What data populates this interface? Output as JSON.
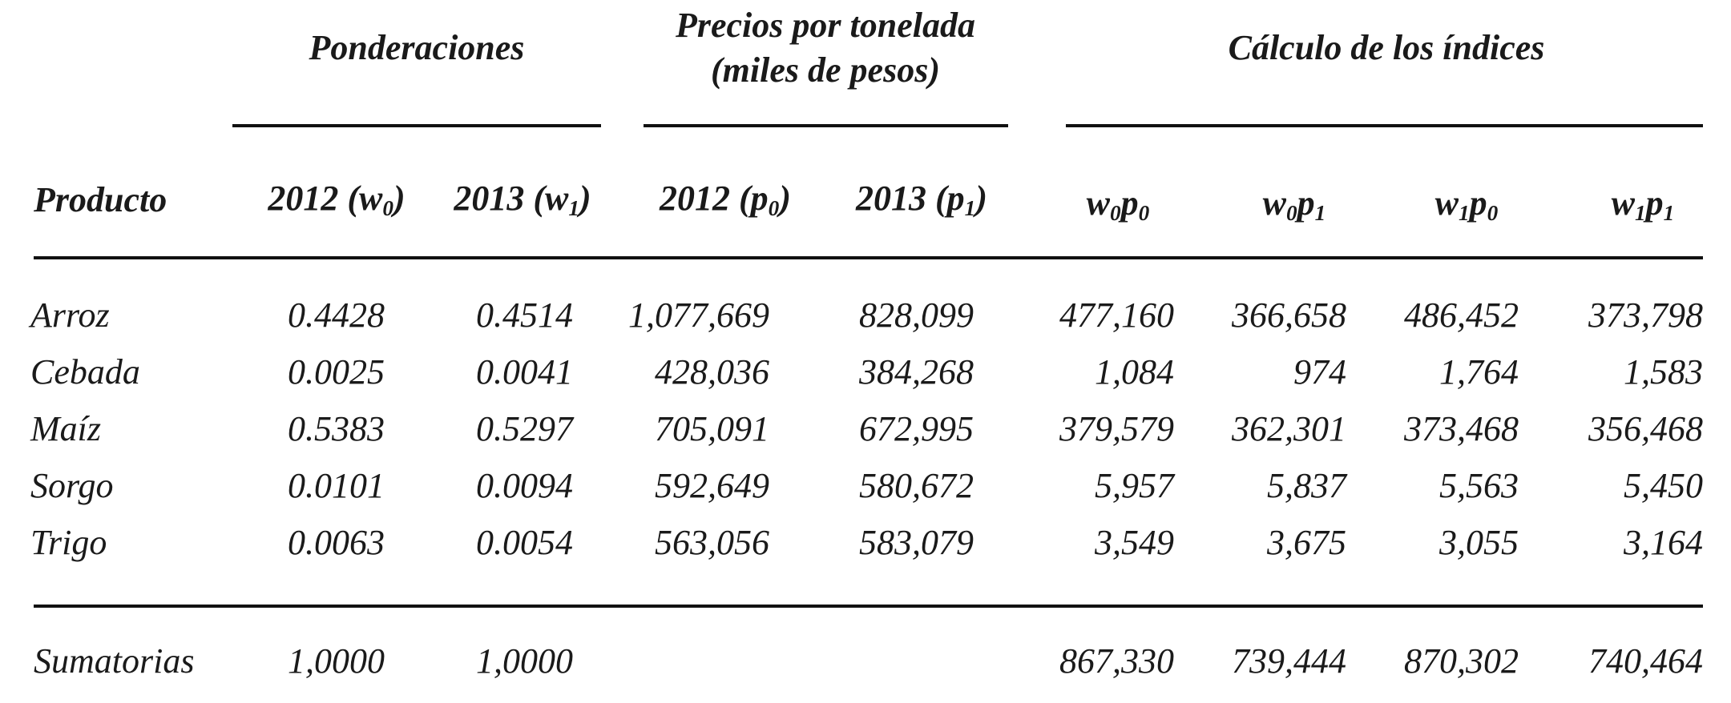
{
  "groups": {
    "ponderaciones": "Ponderaciones",
    "precios_line1": "Precios por tonelada",
    "precios_line2": "(miles de pesos)",
    "calculo": "Cálculo de los índices"
  },
  "columns": {
    "producto": "Producto",
    "w0": {
      "prefix": "2012 (",
      "var": "w",
      "sub": "0",
      "suffix": ")"
    },
    "w1": {
      "prefix": "2013 (",
      "var": "w",
      "sub": "1",
      "suffix": ")"
    },
    "p0": {
      "prefix": "2012 (",
      "var": "p",
      "sub": "0",
      "suffix": ")"
    },
    "p1": {
      "prefix": "2013 (",
      "var": "p",
      "sub": "1",
      "suffix": ")"
    },
    "w0p0": {
      "a": "w",
      "as": "0",
      "b": "p",
      "bs": "0"
    },
    "w0p1": {
      "a": "w",
      "as": "0",
      "b": "p",
      "bs": "1"
    },
    "w1p0": {
      "a": "w",
      "as": "1",
      "b": "p",
      "bs": "0"
    },
    "w1p1": {
      "a": "w",
      "as": "1",
      "b": "p",
      "bs": "1"
    }
  },
  "rows": [
    {
      "producto": "Arroz",
      "w0": "0.4428",
      "w1": "0.4514",
      "p0": "1,077,669",
      "p1": "828,099",
      "w0p0": "477,160",
      "w0p1": "366,658",
      "w1p0": "486,452",
      "w1p1": "373,798"
    },
    {
      "producto": "Cebada",
      "w0": "0.0025",
      "w1": "0.0041",
      "p0": "428,036",
      "p1": "384,268",
      "w0p0": "1,084",
      "w0p1": "974",
      "w1p0": "1,764",
      "w1p1": "1,583"
    },
    {
      "producto": "Maíz",
      "w0": "0.5383",
      "w1": "0.5297",
      "p0": "705,091",
      "p1": "672,995",
      "w0p0": "379,579",
      "w0p1": "362,301",
      "w1p0": "373,468",
      "w1p1": "356,468"
    },
    {
      "producto": "Sorgo",
      "w0": "0.0101",
      "w1": "0.0094",
      "p0": "592,649",
      "p1": "580,672",
      "w0p0": "5,957",
      "w0p1": "5,837",
      "w1p0": "5,563",
      "w1p1": "5,450"
    },
    {
      "producto": "Trigo",
      "w0": "0.0063",
      "w1": "0.0054",
      "p0": "563,056",
      "p1": "583,079",
      "w0p0": "3,549",
      "w0p1": "3,675",
      "w1p0": "3,055",
      "w1p1": "3,164"
    }
  ],
  "totals": {
    "label": "Sumatorias",
    "w0": "1,0000",
    "w1": "1,0000",
    "w0p0": "867,330",
    "w0p1": "739,444",
    "w1p0": "870,302",
    "w1p1": "740,464"
  }
}
